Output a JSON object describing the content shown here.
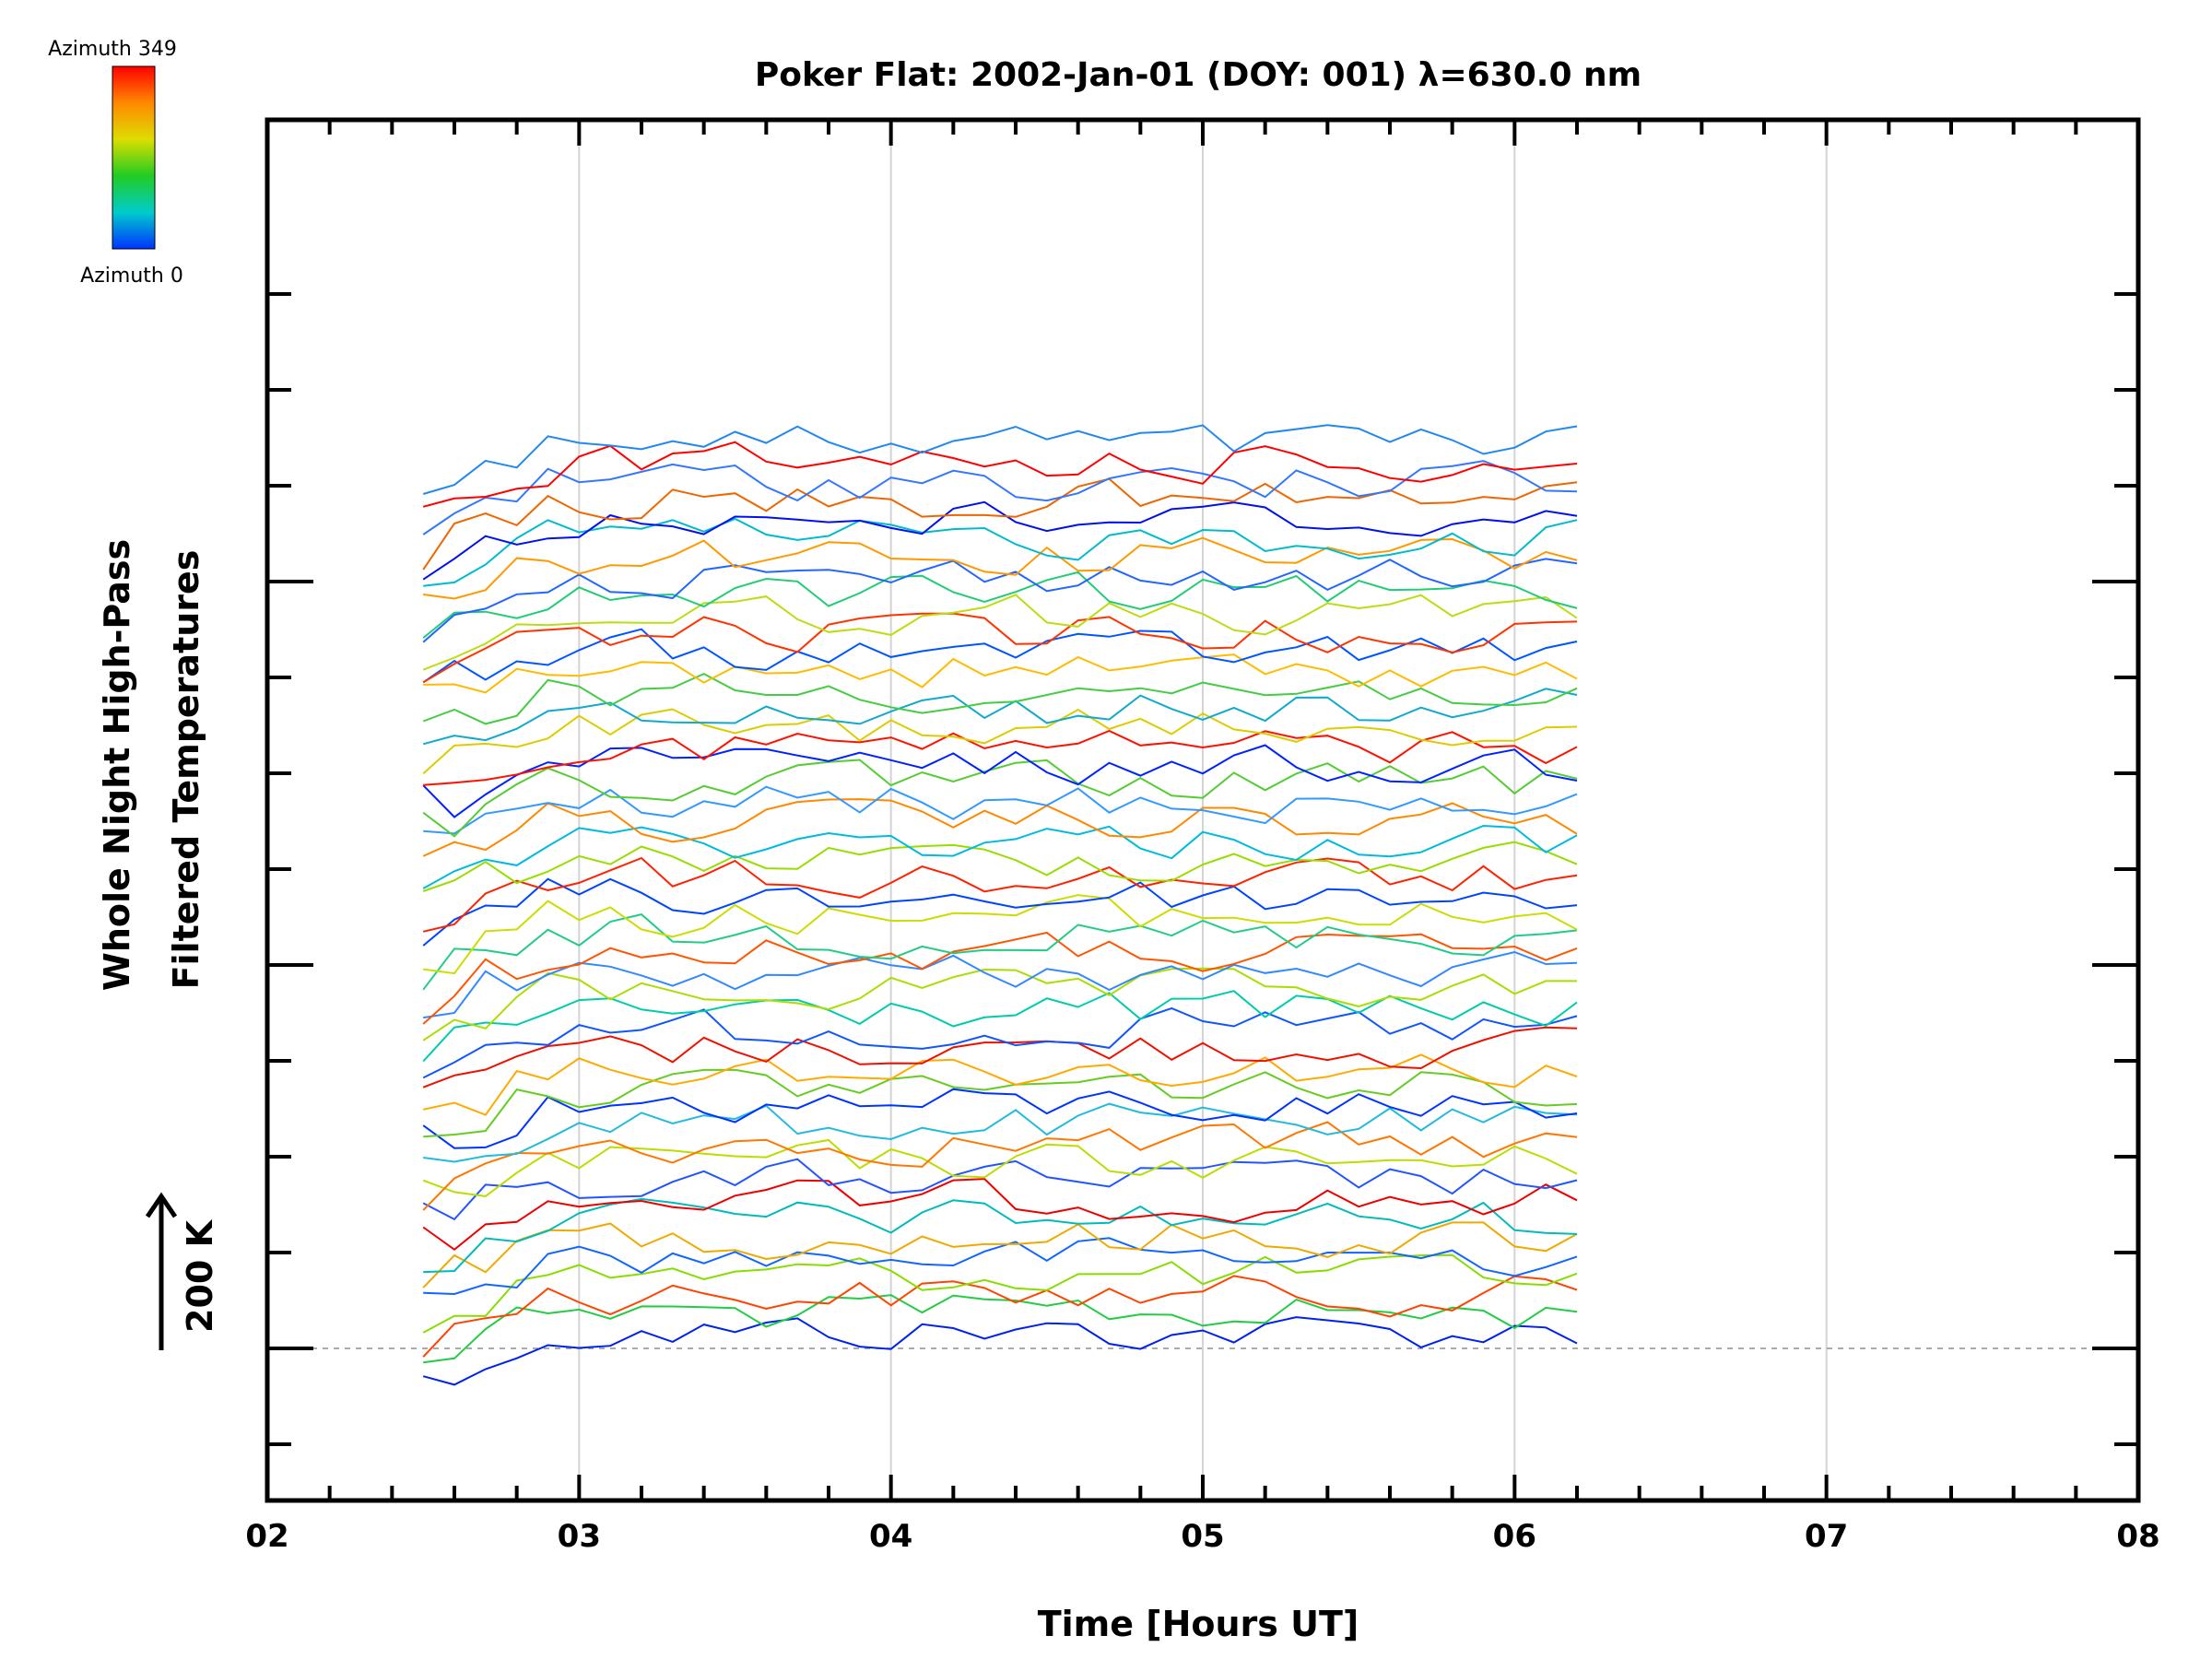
{
  "chart_data": {
    "type": "line",
    "title": "Poker Flat: 2002-Jan-01 (DOY: 001) λ=630.0 nm",
    "xlabel": "Time [Hours UT]",
    "ylabel_line1": "Whole Night High-Pass",
    "ylabel_line2": "Filtered Temperatures",
    "scale_label": "200 K",
    "xlim": [
      2,
      8
    ],
    "x_ticks": [
      "02",
      "03",
      "04",
      "05",
      "06",
      "07",
      "08"
    ],
    "x_gridlines": [
      3,
      4,
      5,
      6,
      7
    ],
    "grid": true,
    "colorbar": {
      "top_label": "Azimuth 349",
      "bottom_label": "Azimuth 0",
      "colors": [
        "#ff0000",
        "#ff8800",
        "#dddd00",
        "#22cc22",
        "#00cccc",
        "#0033ff"
      ]
    },
    "time_range": [
      2.5,
      6.2
    ],
    "n_series": 48,
    "baseline_offsets_K": [
      0,
      100,
      200,
      300,
      400,
      500,
      600,
      700,
      800,
      900,
      1000,
      1100,
      1200,
      1300,
      1400,
      1500,
      1600,
      1700,
      1800,
      1900,
      2000,
      2100,
      2200,
      2300,
      2400,
      2500,
      2600,
      2700,
      2800,
      2900,
      3000,
      3100,
      3200,
      3300,
      3400,
      3500,
      3600,
      3700,
      3800,
      3900,
      4000,
      4100,
      4200,
      4300,
      4400,
      4500,
      4600,
      4700
    ],
    "series_colors": [
      "#0022ee",
      "#22cc44",
      "#ff4400",
      "#88dd00",
      "#1166ff",
      "#eeaa00",
      "#00bbbb",
      "#ee0000",
      "#2255ff",
      "#bbdd00",
      "#ff7700",
      "#22bbdd",
      "#0033ff",
      "#66cc22",
      "#ffaa00",
      "#ee1100",
      "#1155ff",
      "#00ccaa",
      "#aadd00",
      "#3388ff",
      "#ff5500",
      "#22cc88",
      "#ccdd00",
      "#0044ff",
      "#ff2200",
      "#99dd00",
      "#00bbdd",
      "#ff8800",
      "#3399ff",
      "#55cc33",
      "#0022ff",
      "#ff1100",
      "#ddcc00",
      "#11aacc",
      "#44cc44",
      "#ffbb00",
      "#0055ff",
      "#ff3300",
      "#bbdd11",
      "#22cc77",
      "#2266ff",
      "#ff9900",
      "#00bbcc",
      "#0011ee",
      "#ee6600",
      "#3377ff",
      "#ff0000",
      "#2288ee"
    ]
  }
}
